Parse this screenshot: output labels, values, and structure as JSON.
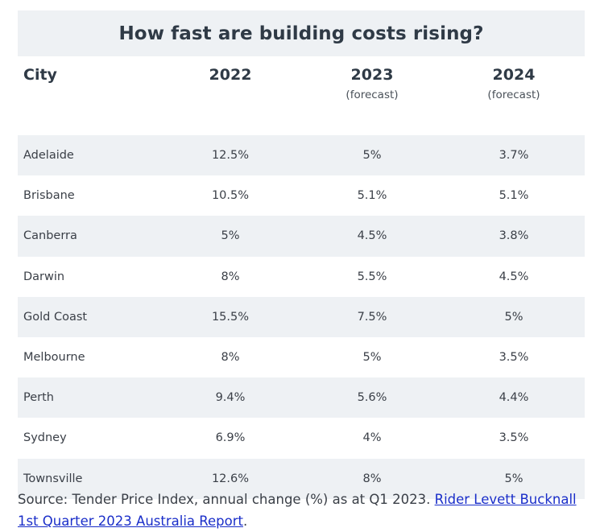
{
  "title": "How fast are building costs rising?",
  "columns": [
    {
      "label": "City",
      "sub": ""
    },
    {
      "label": "2022",
      "sub": ""
    },
    {
      "label": "2023",
      "sub": "(forecast)"
    },
    {
      "label": "2024",
      "sub": "(forecast)"
    }
  ],
  "rows": [
    [
      "Adelaide",
      "12.5%",
      "5%",
      "3.7%"
    ],
    [
      "Brisbane",
      "10.5%",
      "5.1%",
      "5.1%"
    ],
    [
      "Canberra",
      "5%",
      "4.5%",
      "3.8%"
    ],
    [
      "Darwin",
      "8%",
      "5.5%",
      "4.5%"
    ],
    [
      "Gold Coast",
      "15.5%",
      "7.5%",
      "5%"
    ],
    [
      "Melbourne",
      "8%",
      "5%",
      "3.5%"
    ],
    [
      "Perth",
      "9.4%",
      "5.6%",
      "4.4%"
    ],
    [
      "Sydney",
      "6.9%",
      "4%",
      "3.5%"
    ],
    [
      "Townsville",
      "12.6%",
      "8%",
      "5%"
    ]
  ],
  "source": {
    "prefix": "Source: Tender Price Index, annual change (%) as at Q1 2023.",
    "link_text": "Rider Levett Bucknall 1st Quarter 2023 Australia Report",
    "suffix": "."
  },
  "colors": {
    "row_band": "#eef1f4",
    "link": "#1a2ec9",
    "heading": "#2f3a46"
  },
  "chart_data": {
    "type": "table",
    "title": "How fast are building costs rising?",
    "columns": [
      "City",
      "2022",
      "2023 (forecast)",
      "2024 (forecast)"
    ],
    "categories": [
      "Adelaide",
      "Brisbane",
      "Canberra",
      "Darwin",
      "Gold Coast",
      "Melbourne",
      "Perth",
      "Sydney",
      "Townsville"
    ],
    "series": [
      {
        "name": "2022",
        "values": [
          12.5,
          10.5,
          5,
          8,
          15.5,
          8,
          9.4,
          6.9,
          12.6
        ]
      },
      {
        "name": "2023 (forecast)",
        "values": [
          5,
          5.1,
          4.5,
          5.5,
          7.5,
          5,
          5.6,
          4,
          8
        ]
      },
      {
        "name": "2024 (forecast)",
        "values": [
          3.7,
          5.1,
          3.8,
          4.5,
          5,
          3.5,
          4.4,
          3.5,
          5
        ]
      }
    ],
    "unit": "%"
  }
}
